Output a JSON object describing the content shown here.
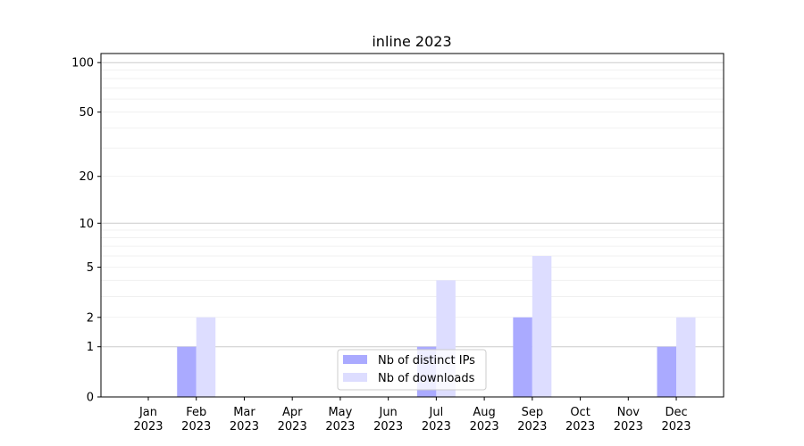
{
  "chart_data": {
    "type": "bar",
    "title": "inline 2023",
    "xlabel": "",
    "ylabel": "",
    "yscale": "log(1+y)",
    "ylim": [
      0,
      114
    ],
    "yticks": [
      0,
      1,
      2,
      5,
      10,
      20,
      50,
      100
    ],
    "ytick_labels": [
      "0",
      "1",
      "2",
      "5",
      "10",
      "20",
      "50",
      "100"
    ],
    "grid": true,
    "legend_position": "bottom-center",
    "categories": [
      "Jan\n2023",
      "Feb\n2023",
      "Mar\n2023",
      "Apr\n2023",
      "May\n2023",
      "Jun\n2023",
      "Jul\n2023",
      "Aug\n2023",
      "Sep\n2023",
      "Oct\n2023",
      "Nov\n2023",
      "Dec\n2023"
    ],
    "series": [
      {
        "name": "Nb of distinct IPs",
        "color": "#aaaaff",
        "values": [
          0,
          1,
          0,
          0,
          0,
          0,
          1,
          0,
          2,
          0,
          0,
          1
        ]
      },
      {
        "name": "Nb of downloads",
        "color": "#ddddff",
        "values": [
          0,
          2,
          0,
          0,
          0,
          0,
          4,
          0,
          6,
          0,
          0,
          2
        ]
      }
    ]
  }
}
